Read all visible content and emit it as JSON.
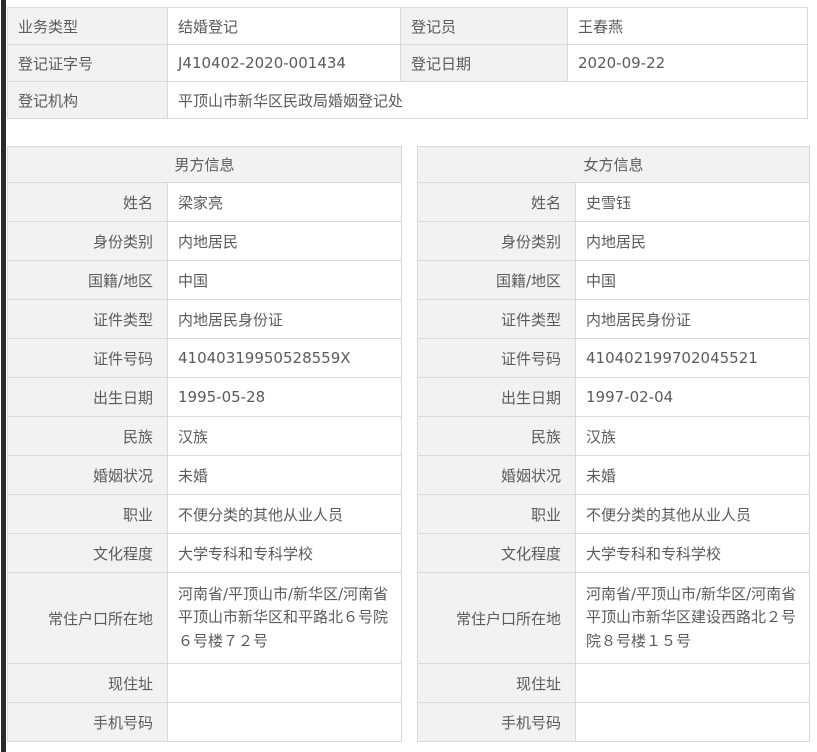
{
  "colors": {
    "label_cell_bg": "#f2f2f2",
    "value_cell_bg": "#ffffff",
    "border": "#d9d9d9",
    "text": "#5b5b5b",
    "left_edge_strip": "#2b2b2b"
  },
  "summary": {
    "row1": {
      "label1": "业务类型",
      "value1": "结婚登记",
      "label2": "登记员",
      "value2": "王春燕"
    },
    "row2": {
      "label1": "登记证字号",
      "value1": "J410402-2020-001434",
      "label2": "登记日期",
      "value2": "2020-09-22"
    },
    "row3": {
      "label": "登记机构",
      "value": "平顶山市新华区民政局婚姻登记处"
    }
  },
  "male": {
    "title": "男方信息",
    "fields": [
      {
        "label": "姓名",
        "value": "梁家亮"
      },
      {
        "label": "身份类别",
        "value": "内地居民"
      },
      {
        "label": "国籍/地区",
        "value": "中国"
      },
      {
        "label": "证件类型",
        "value": "内地居民身份证"
      },
      {
        "label": "证件号码",
        "value": "41040319950528559X"
      },
      {
        "label": "出生日期",
        "value": "1995-05-28"
      },
      {
        "label": "民族",
        "value": "汉族"
      },
      {
        "label": "婚姻状况",
        "value": "未婚"
      },
      {
        "label": "职业",
        "value": "不便分类的其他从业人员"
      },
      {
        "label": "文化程度",
        "value": "大学专科和专科学校"
      },
      {
        "label": "常住户口所在地",
        "value": "河南省/平顶山市/新华区/河南省平顶山市新华区和平路北６号院６号楼７２号"
      },
      {
        "label": "现住址",
        "value": ""
      },
      {
        "label": "手机号码",
        "value": ""
      }
    ]
  },
  "female": {
    "title": "女方信息",
    "fields": [
      {
        "label": "姓名",
        "value": "史雪钰"
      },
      {
        "label": "身份类别",
        "value": "内地居民"
      },
      {
        "label": "国籍/地区",
        "value": "中国"
      },
      {
        "label": "证件类型",
        "value": "内地居民身份证"
      },
      {
        "label": "证件号码",
        "value": "410402199702045521"
      },
      {
        "label": "出生日期",
        "value": "1997-02-04"
      },
      {
        "label": "民族",
        "value": "汉族"
      },
      {
        "label": "婚姻状况",
        "value": "未婚"
      },
      {
        "label": "职业",
        "value": "不便分类的其他从业人员"
      },
      {
        "label": "文化程度",
        "value": "大学专科和专科学校"
      },
      {
        "label": "常住户口所在地",
        "value": "河南省/平顶山市/新华区/河南省平顶山市新华区建设西路北２号院８号楼１５号"
      },
      {
        "label": "现住址",
        "value": ""
      },
      {
        "label": "手机号码",
        "value": ""
      }
    ]
  }
}
